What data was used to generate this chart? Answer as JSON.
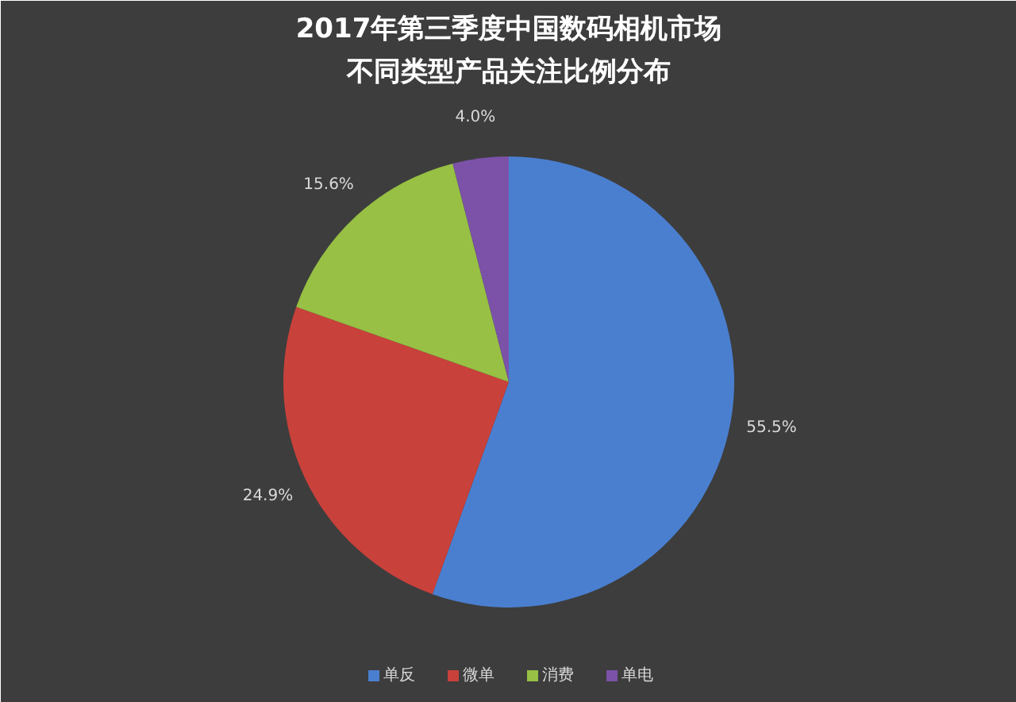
{
  "chart_data": {
    "type": "pie",
    "title": "2017年第三季度中国数码相机市场",
    "subtitle": "不同类型产品关注比例分布",
    "categories": [
      "单反",
      "微单",
      "消费",
      "单电"
    ],
    "values": [
      55.5,
      24.9,
      15.6,
      4.0
    ],
    "value_labels": [
      "55.5%",
      "24.9%",
      "15.6%",
      "4.0%"
    ],
    "colors": [
      "#4a7fd0",
      "#c9413b",
      "#97c044",
      "#7b52a8"
    ],
    "legend": "bottom"
  }
}
